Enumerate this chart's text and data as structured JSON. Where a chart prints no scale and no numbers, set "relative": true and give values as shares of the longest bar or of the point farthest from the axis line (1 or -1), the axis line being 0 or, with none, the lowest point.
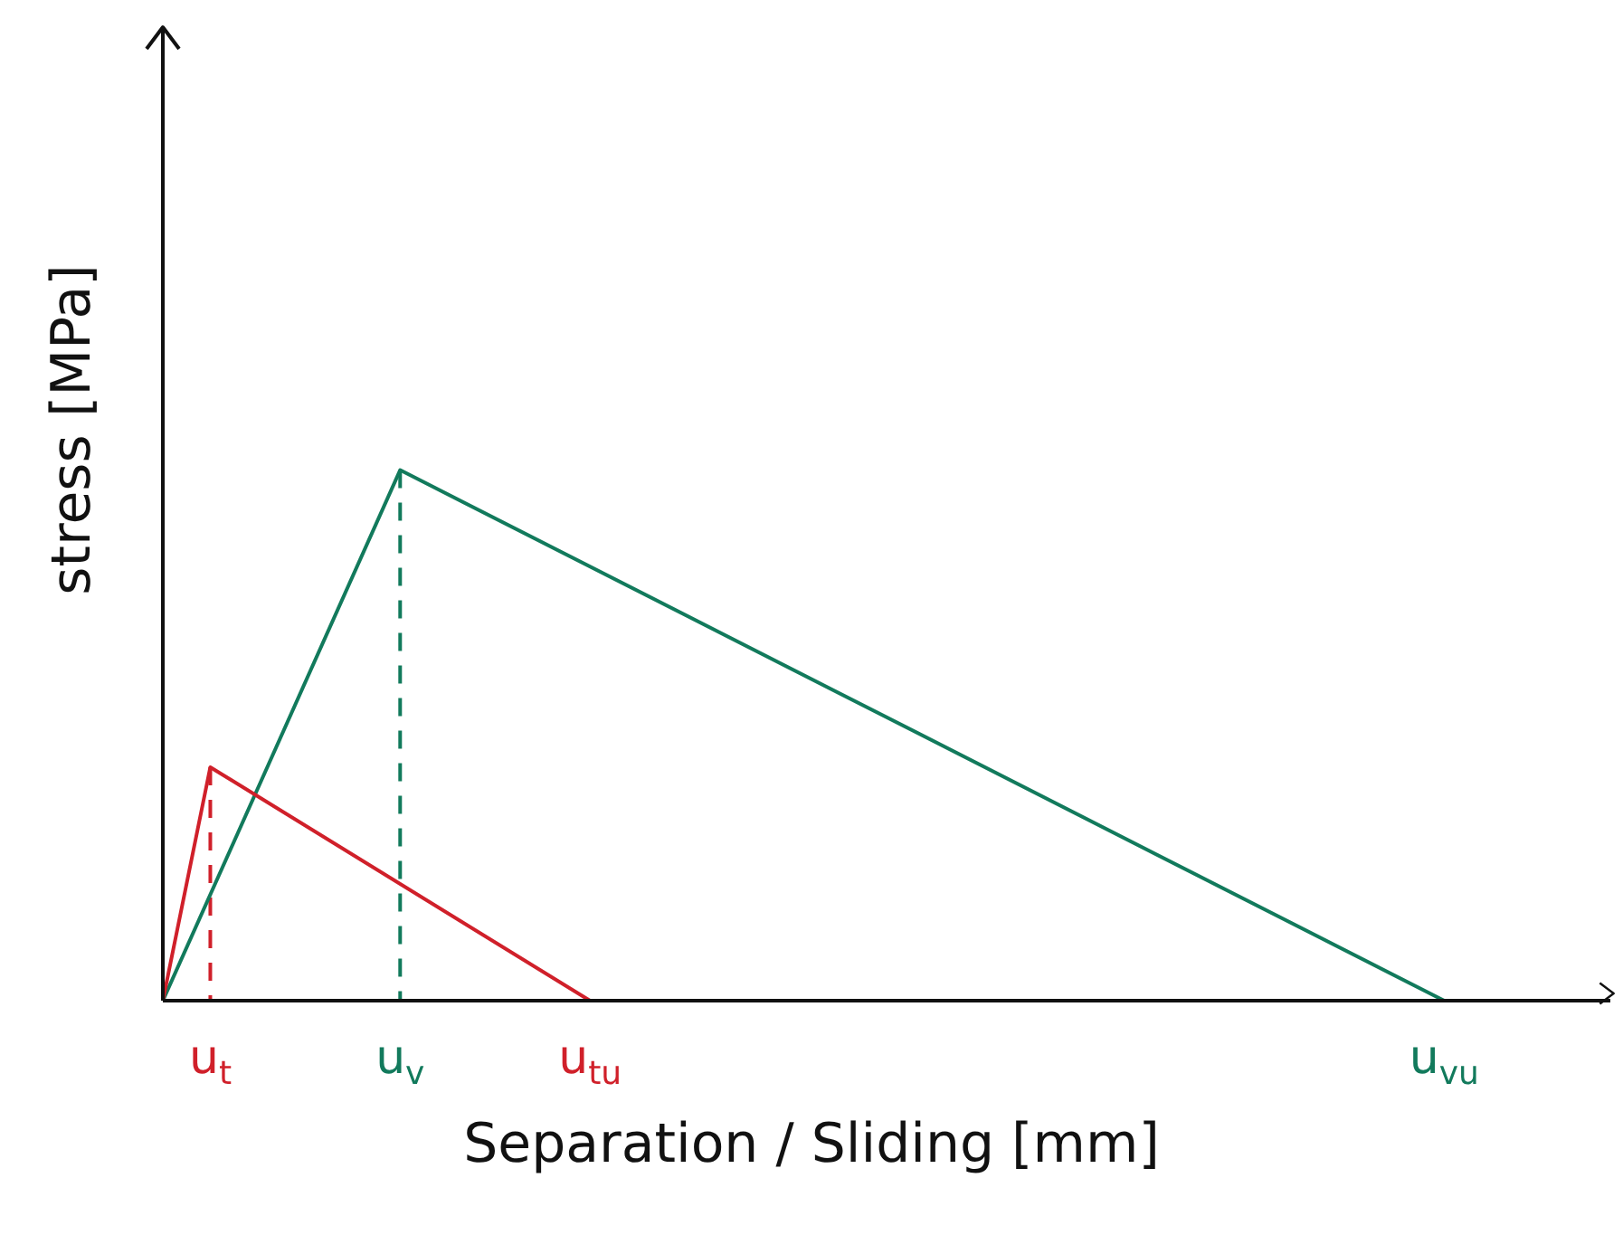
{
  "chart_data": {
    "type": "line",
    "relative": true,
    "ylabel": "stress [MPa]",
    "xlabel": "Separation / Sliding [mm]",
    "categories": [
      null,
      null,
      "u$_{t}$",
      null,
      null,
      null,
      null,
      null,
      null,
      null,
      "u$_{v}$",
      null,
      null,
      null,
      null,
      null,
      null,
      null,
      "u$_{tu}$",
      null,
      null,
      null,
      null,
      null,
      null,
      null,
      null,
      null,
      null,
      null,
      null,
      null,
      null,
      null,
      null,
      null,
      null,
      null,
      null,
      null,
      null,
      null,
      null,
      null,
      null,
      null,
      null,
      null,
      null,
      null,
      null,
      null,
      null,
      null,
      "u$_{vu}$",
      null,
      null,
      null,
      null,
      null,
      null,
      null
    ],
    "marker": "none",
    "line_style": "solid",
    "series": [
      {
        "color": "#d0202a",
        "values": [
          0,
          null,
          0.44,
          null,
          null,
          null,
          null,
          null,
          null,
          null,
          null,
          null,
          null,
          null,
          null,
          null,
          null,
          null,
          0,
          null,
          null,
          null,
          null,
          null,
          null,
          null,
          null,
          null,
          null,
          null,
          null,
          null,
          null,
          null,
          null,
          null,
          null,
          null,
          null,
          null,
          null,
          null,
          null,
          null,
          null,
          null,
          null,
          null,
          null,
          null,
          null,
          null,
          null,
          null,
          null,
          null,
          null,
          null,
          null,
          null,
          null,
          null
        ]
      },
      {
        "color": "#127a5c",
        "values": [
          0,
          null,
          null,
          null,
          null,
          null,
          null,
          null,
          null,
          null,
          1,
          null,
          null,
          null,
          null,
          null,
          null,
          null,
          null,
          null,
          null,
          null,
          null,
          null,
          null,
          null,
          null,
          null,
          null,
          null,
          null,
          null,
          null,
          null,
          null,
          null,
          null,
          null,
          null,
          null,
          null,
          null,
          null,
          null,
          null,
          null,
          null,
          null,
          null,
          null,
          null,
          null,
          null,
          null,
          0,
          null,
          null,
          null,
          null,
          null,
          null,
          null
        ]
      },
      {
        "color": "#d0202a",
        "x": [
          "u$_{t}$",
          "u$_{t}$"
        ],
        "values": [
          0.44,
          0
        ],
        "line_style": "dashed"
      },
      {
        "color": "#127a5c",
        "x": [
          "u$_{v}$",
          "u$_{v}$"
        ],
        "values": [
          1,
          0
        ],
        "line_style": "dashed"
      }
    ]
  }
}
